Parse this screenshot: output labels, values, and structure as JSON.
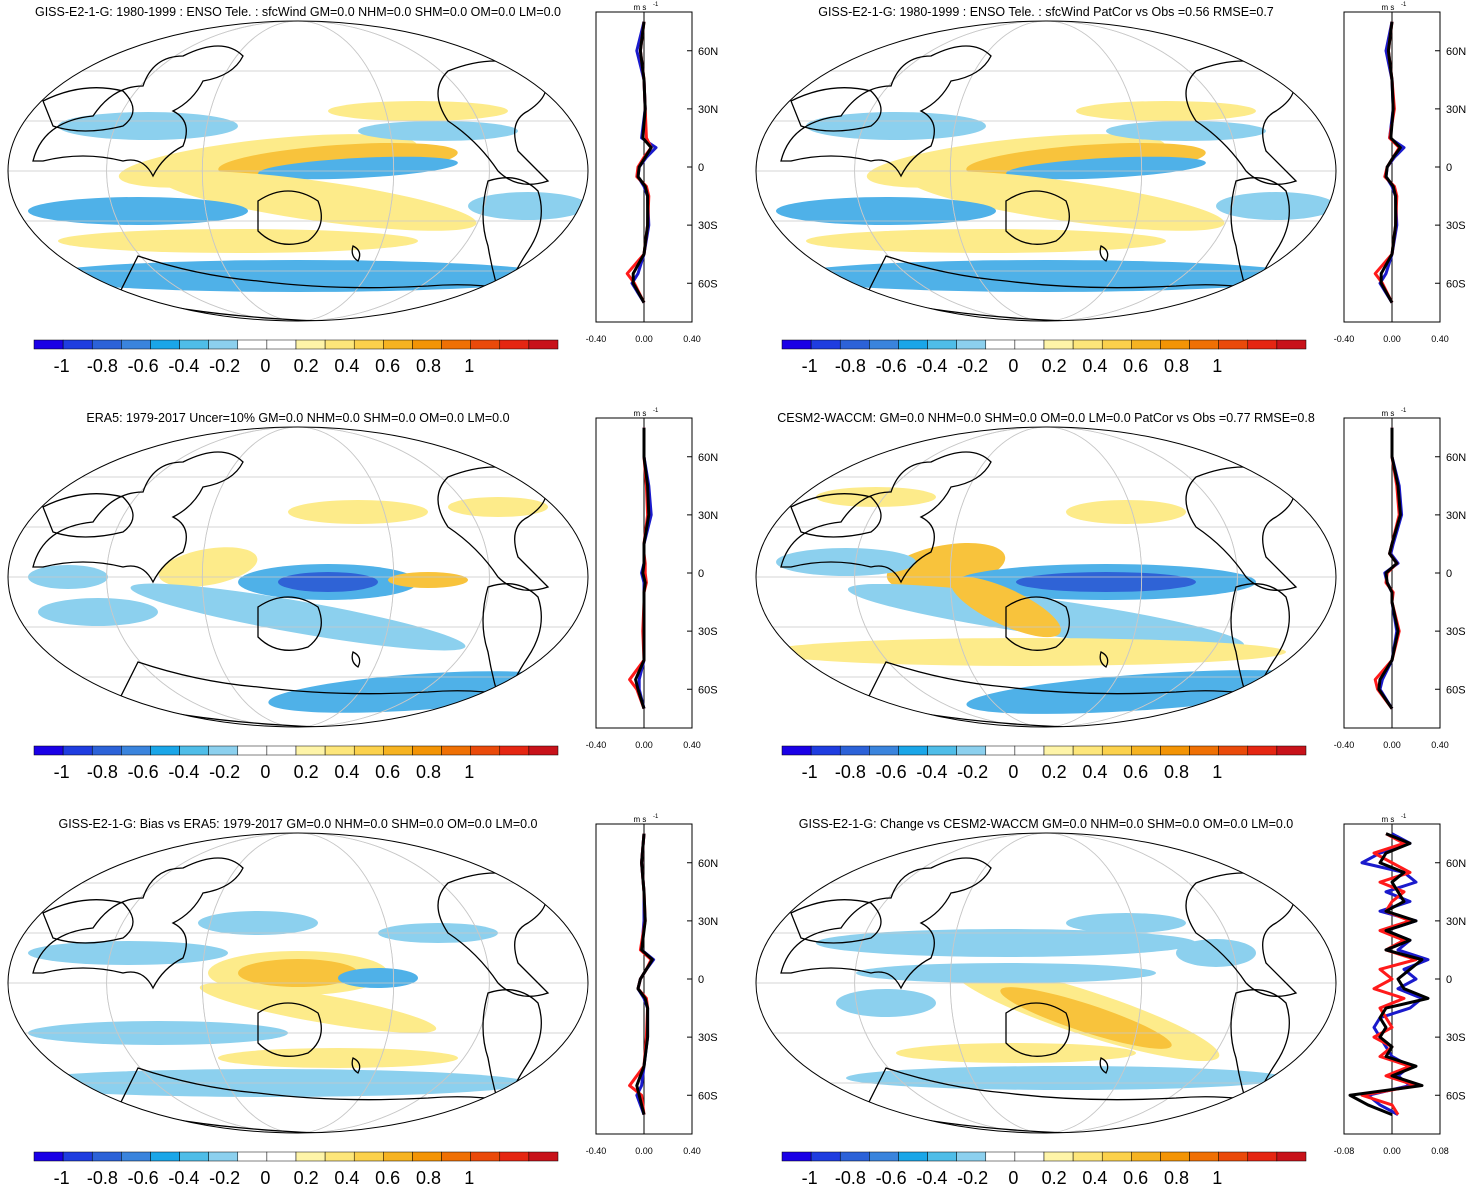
{
  "colorbar": {
    "colors": [
      "#1a00e6",
      "#1f3de0",
      "#2c62d8",
      "#3a84dd",
      "#1aa6e8",
      "#4fbde8",
      "#8cd0ee",
      "#ffffff",
      "#ffffff",
      "#fef4a8",
      "#fde67a",
      "#fbd14c",
      "#f6b321",
      "#f39405",
      "#ef7004",
      "#ea4a0a",
      "#e52612",
      "#c8121a"
    ],
    "tick_labels": [
      "-1",
      "-0.8",
      "-0.6",
      "-0.4",
      "-0.2",
      "0",
      "0.2",
      "0.4",
      "0.6",
      "0.8",
      "1"
    ]
  },
  "map_colors": {
    "neg_light": "#8cd0ee",
    "neg_mid": "#4fb1e8",
    "neg_dark": "#2f63d6",
    "pos_light": "#fdeb8a",
    "pos_mid": "#f8c33c",
    "pos_dark": "#f29a12",
    "land_line": "#000000",
    "grid": "#c8c8c8"
  },
  "zonal_units": "m s",
  "zonal_units_exp": "-1",
  "lat_ticks": [
    "60N",
    "30N",
    "0",
    "30S",
    "60S"
  ],
  "series_colors": {
    "model": "#ff1a1a",
    "obs": "#1a1acc",
    "ens": "#000000"
  },
  "panels": [
    {
      "id": "p1",
      "title": "GISS-E2-1-G: 1980-1999 : ENSO Tele. : sfcWind GM=0.0 NHM=0.0 SHM=0.0 OM=0.0 LM=0.0",
      "xticks": [
        "-0.40",
        "0.00",
        "0.40"
      ]
    },
    {
      "id": "p2",
      "title": "GISS-E2-1-G: 1980-1999 : ENSO Tele. : sfcWind PatCor vs Obs =0.56 RMSE=0.7",
      "xticks": [
        "-0.40",
        "0.00",
        "0.40"
      ]
    },
    {
      "id": "p3",
      "title": "ERA5: 1979-2017 Uncer=10% GM=0.0 NHM=0.0 SHM=0.0 OM=0.0 LM=0.0",
      "xticks": [
        "-0.40",
        "0.00",
        "0.40"
      ]
    },
    {
      "id": "p4",
      "title": "CESM2-WACCM: GM=0.0 NHM=0.0 SHM=0.0 OM=0.0 LM=0.0 PatCor vs Obs =0.77 RMSE=0.8",
      "xticks": [
        "-0.40",
        "0.00",
        "0.40"
      ]
    },
    {
      "id": "p5",
      "title": "GISS-E2-1-G: Bias vs ERA5: 1979-2017 GM=0.0 NHM=0.0 SHM=0.0 OM=0.0 LM=0.0",
      "xticks": [
        "-0.40",
        "0.00",
        "0.40"
      ]
    },
    {
      "id": "p6",
      "title": "GISS-E2-1-G: Change vs CESM2-WACCM GM=0.0 NHM=0.0 SHM=0.0 OM=0.0 LM=0.0",
      "xticks": [
        "-0.08",
        "0.00",
        "0.08"
      ]
    }
  ],
  "chart_data": [
    {
      "type": "heatmap",
      "title": "GISS-E2-1-G: 1980-1999 : ENSO Tele. : sfcWind GM=0.0 NHM=0.0 SHM=0.0 OM=0.0 LM=0.0",
      "colorbar_range": [
        -1,
        1
      ],
      "zonal_profile": {
        "xlim": [
          -0.4,
          0.4
        ],
        "lat": [
          75,
          60,
          45,
          30,
          15,
          10,
          5,
          0,
          -5,
          -10,
          -15,
          -30,
          -45,
          -55,
          -60,
          -70
        ],
        "model": [
          0.0,
          -0.03,
          0.0,
          0.01,
          0.02,
          0.06,
          0.0,
          -0.05,
          -0.06,
          0.02,
          0.04,
          0.03,
          0.0,
          -0.14,
          -0.08,
          0.0
        ],
        "obs": [
          0.0,
          -0.06,
          0.0,
          0.01,
          -0.02,
          0.1,
          0.02,
          -0.04,
          -0.05,
          0.0,
          0.03,
          0.04,
          0.0,
          -0.05,
          -0.1,
          0.0
        ],
        "ens": [
          0.0,
          -0.03,
          0.0,
          0.01,
          -0.01,
          0.06,
          0.01,
          -0.04,
          -0.05,
          0.01,
          0.03,
          0.03,
          0.0,
          -0.09,
          -0.09,
          0.0
        ]
      }
    },
    {
      "type": "heatmap",
      "title": "GISS-E2-1-G: 1980-1999 : ENSO Tele. : sfcWind PatCor vs Obs =0.56 RMSE=0.7",
      "colorbar_range": [
        -1,
        1
      ],
      "zonal_profile": {
        "xlim": [
          -0.4,
          0.4
        ],
        "lat": [
          75,
          60,
          45,
          30,
          15,
          10,
          5,
          0,
          -5,
          -10,
          -15,
          -30,
          -45,
          -55,
          -60,
          -70
        ],
        "model": [
          0.0,
          -0.03,
          0.0,
          0.02,
          -0.02,
          0.06,
          0.01,
          -0.04,
          -0.06,
          0.02,
          0.04,
          0.03,
          0.0,
          -0.14,
          -0.08,
          0.0
        ],
        "obs": [
          0.0,
          -0.05,
          0.0,
          0.01,
          -0.02,
          0.1,
          0.02,
          -0.04,
          -0.05,
          0.0,
          0.03,
          0.04,
          0.0,
          -0.05,
          -0.1,
          0.0
        ],
        "ens": [
          0.0,
          -0.03,
          0.0,
          0.01,
          -0.01,
          0.07,
          0.01,
          -0.04,
          -0.05,
          0.01,
          0.03,
          0.03,
          0.0,
          -0.09,
          -0.09,
          0.0
        ]
      }
    },
    {
      "type": "heatmap",
      "title": "ERA5: 1979-2017 Uncer=10% GM=0.0 NHM=0.0 SHM=0.0 OM=0.0 LM=0.0",
      "colorbar_range": [
        -1,
        1
      ],
      "zonal_profile": {
        "xlim": [
          -0.4,
          0.4
        ],
        "lat": [
          75,
          60,
          45,
          30,
          15,
          10,
          5,
          0,
          -5,
          -10,
          -15,
          -30,
          -45,
          -55,
          -60,
          -70
        ],
        "model": [
          0.0,
          0.0,
          0.02,
          0.03,
          0.0,
          0.0,
          0.01,
          0.01,
          0.02,
          0.0,
          0.0,
          -0.01,
          0.0,
          -0.12,
          -0.06,
          0.0
        ],
        "obs": [
          0.0,
          0.0,
          0.04,
          0.06,
          0.0,
          0.0,
          0.0,
          -0.02,
          0.0,
          0.0,
          0.0,
          0.0,
          0.0,
          -0.04,
          -0.04,
          0.0
        ],
        "ens": [
          0.0,
          0.0,
          0.03,
          0.04,
          0.0,
          0.0,
          0.0,
          -0.01,
          0.01,
          0.0,
          0.0,
          0.0,
          0.0,
          -0.07,
          -0.05,
          0.0
        ]
      }
    },
    {
      "type": "heatmap",
      "title": "CESM2-WACCM: GM=0.0 NHM=0.0 SHM=0.0 OM=0.0 LM=0.0 PatCor vs Obs =0.77 RMSE=0.8",
      "colorbar_range": [
        -1,
        1
      ],
      "zonal_profile": {
        "xlim": [
          -0.4,
          0.4
        ],
        "lat": [
          75,
          60,
          45,
          30,
          15,
          10,
          5,
          0,
          -5,
          -10,
          -15,
          -30,
          -45,
          -55,
          -60,
          -70
        ],
        "model": [
          0.0,
          0.0,
          0.04,
          0.06,
          0.0,
          -0.02,
          0.04,
          -0.04,
          -0.05,
          0.01,
          0.0,
          0.06,
          0.0,
          -0.14,
          -0.12,
          0.0
        ],
        "obs": [
          0.0,
          0.0,
          0.06,
          0.08,
          0.01,
          -0.01,
          0.05,
          -0.06,
          -0.04,
          0.0,
          0.0,
          0.04,
          0.0,
          -0.08,
          -0.1,
          0.0
        ],
        "ens": [
          0.0,
          0.0,
          0.05,
          0.07,
          0.0,
          -0.02,
          0.04,
          -0.05,
          -0.04,
          0.0,
          0.0,
          0.05,
          0.0,
          -0.1,
          -0.11,
          0.0
        ]
      }
    },
    {
      "type": "heatmap",
      "title": "GISS-E2-1-G: Bias vs ERA5: 1979-2017 GM=0.0 NHM=0.0 SHM=0.0 OM=0.0 LM=0.0",
      "colorbar_range": [
        -1,
        1
      ],
      "zonal_profile": {
        "xlim": [
          -0.4,
          0.4
        ],
        "lat": [
          75,
          60,
          45,
          30,
          15,
          10,
          5,
          0,
          -5,
          -10,
          -15,
          -30,
          -45,
          -55,
          -60,
          -70
        ],
        "model": [
          0.0,
          -0.02,
          0.0,
          0.01,
          -0.03,
          0.06,
          0.02,
          -0.03,
          -0.05,
          0.02,
          0.03,
          0.02,
          0.0,
          -0.12,
          -0.02,
          0.0
        ],
        "obs": [
          0.0,
          -0.02,
          0.0,
          0.0,
          -0.02,
          0.08,
          0.02,
          -0.03,
          -0.05,
          0.0,
          0.03,
          0.03,
          0.0,
          -0.02,
          -0.06,
          0.0
        ],
        "ens": [
          0.0,
          -0.02,
          0.0,
          0.01,
          -0.02,
          0.07,
          0.02,
          -0.03,
          -0.05,
          0.01,
          0.03,
          0.03,
          0.0,
          -0.06,
          -0.04,
          0.0
        ]
      }
    },
    {
      "type": "heatmap",
      "title": "GISS-E2-1-G: Change vs CESM2-WACCM GM=0.0 NHM=0.0 SHM=0.0 OM=0.0 LM=0.0",
      "colorbar_range": [
        -1,
        1
      ],
      "zonal_profile": {
        "xlim": [
          -0.08,
          0.08
        ],
        "lat": [
          75,
          70,
          65,
          60,
          55,
          50,
          45,
          40,
          35,
          30,
          25,
          20,
          15,
          10,
          5,
          0,
          -5,
          -10,
          -15,
          -20,
          -25,
          -30,
          -35,
          -40,
          -45,
          -50,
          -55,
          -60,
          -65,
          -70
        ],
        "model": [
          -0.01,
          0.02,
          -0.03,
          0.0,
          0.03,
          -0.02,
          0.02,
          0.0,
          -0.01,
          0.03,
          -0.02,
          0.02,
          -0.01,
          0.04,
          -0.02,
          0.0,
          -0.03,
          0.02,
          -0.02,
          -0.01,
          0.0,
          -0.03,
          0.0,
          -0.02,
          0.03,
          -0.01,
          0.04,
          -0.05,
          0.0,
          0.01
        ],
        "obs": [
          0.0,
          0.03,
          -0.02,
          -0.05,
          0.02,
          0.04,
          -0.01,
          0.03,
          -0.02,
          0.04,
          -0.01,
          0.03,
          0.01,
          0.06,
          0.02,
          0.04,
          0.01,
          0.05,
          0.03,
          -0.02,
          -0.03,
          -0.02,
          -0.01,
          0.0,
          0.03,
          0.01,
          0.03,
          -0.04,
          -0.02,
          0.01
        ],
        "ens": [
          -0.01,
          0.03,
          -0.01,
          -0.02,
          0.02,
          0.0,
          0.01,
          0.02,
          -0.01,
          0.04,
          -0.01,
          0.03,
          -0.01,
          0.05,
          0.03,
          0.01,
          0.02,
          0.06,
          -0.01,
          -0.02,
          -0.01,
          -0.02,
          0.0,
          -0.01,
          0.04,
          0.0,
          0.05,
          -0.07,
          -0.04,
          0.0
        ]
      }
    }
  ]
}
